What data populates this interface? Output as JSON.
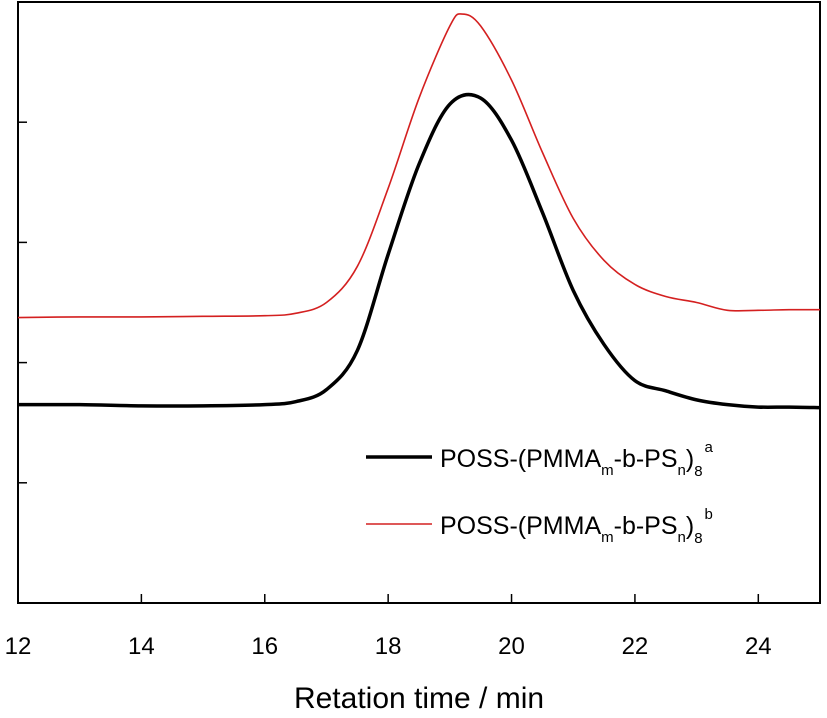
{
  "chart_data": {
    "type": "line",
    "xlabel": "Retation time / min",
    "ylabel": "",
    "xlim": [
      12,
      25
    ],
    "ylim": [
      0,
      1
    ],
    "x_ticks": [
      "12",
      "14",
      "16",
      "18",
      "20",
      "22",
      "24"
    ],
    "x_tick_values": [
      12,
      14,
      16,
      18,
      20,
      22,
      24
    ],
    "y_ticks_labeled": false,
    "grid": false,
    "legend_position": "lower-right",
    "series": [
      {
        "key": "a",
        "legend": {
          "main": "POSS-(PMMA",
          "sub1": "m",
          "mid": "-b-PS",
          "sub2": "n",
          "close": ")",
          "sub3": "8",
          "sup": "a"
        },
        "color": "#000000",
        "x": [
          12,
          13,
          14,
          15,
          16,
          16.5,
          17,
          17.5,
          18,
          18.5,
          19,
          19.5,
          20,
          20.5,
          21,
          21.5,
          22,
          22.5,
          23,
          23.5,
          24,
          24.5,
          25
        ],
        "y": [
          0.33,
          0.33,
          0.328,
          0.328,
          0.33,
          0.335,
          0.355,
          0.42,
          0.58,
          0.73,
          0.83,
          0.84,
          0.77,
          0.65,
          0.52,
          0.43,
          0.37,
          0.353,
          0.338,
          0.33,
          0.326,
          0.326,
          0.325
        ]
      },
      {
        "key": "b",
        "legend": {
          "main": "POSS-(PMMA",
          "sub1": "m",
          "mid": "-b-PS",
          "sub2": "n",
          "close": ")",
          "sub3": "8",
          "sup": "b"
        },
        "color": "#d42020",
        "x": [
          12,
          13,
          14,
          15,
          16,
          16.5,
          17,
          17.5,
          18,
          18.5,
          19,
          19.2,
          19.5,
          20,
          20.5,
          21,
          21.5,
          22,
          22.5,
          23,
          23.5,
          24,
          24.5,
          25
        ],
        "y": [
          0.475,
          0.476,
          0.476,
          0.477,
          0.478,
          0.482,
          0.5,
          0.56,
          0.69,
          0.84,
          0.96,
          0.98,
          0.96,
          0.87,
          0.75,
          0.64,
          0.57,
          0.53,
          0.51,
          0.5,
          0.487,
          0.487,
          0.488,
          0.488
        ]
      }
    ]
  }
}
